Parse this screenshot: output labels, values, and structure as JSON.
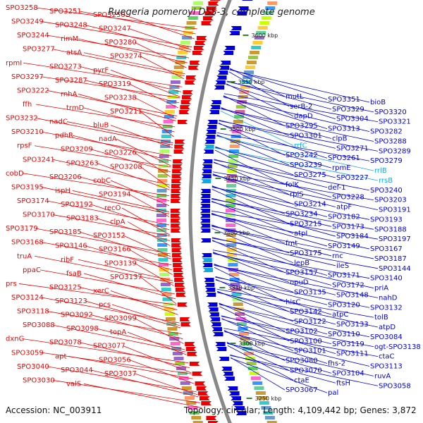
{
  "title": "Ruegeria pomeroyi DSS-3, complete genome",
  "accession": "Accession: NC_003911",
  "topology": "Topology: circular; Length: 4,109,442 bp; Genes: 3,872",
  "colors": {
    "forward": "#ee0000",
    "reverse": "#0000dd",
    "rna": "#11aadd",
    "backbone": "#888888",
    "tick": "#2a8a2a"
  },
  "ticks": [
    "3600 kbp",
    "3550 kbp",
    "3500 kbp",
    "3450 kbp",
    "3400 kbp",
    "3350 kbp",
    "3300 kbp",
    "3250 kbp"
  ],
  "left_labels": [
    "SPO3258",
    "SPO3251",
    "SPO3250",
    "SPO3249",
    "SPO3248",
    "SPO3247",
    "SPO3244",
    "rimM",
    "SPO3280",
    "SPO3277",
    "atsA",
    "SPO3274",
    "rpmI",
    "SPO3273",
    "pyrF",
    "SPO3297",
    "SPO3287",
    "SPO3319",
    "SPO3222",
    "rnhA",
    "SPO3238",
    "ffh",
    "trmD",
    "SPO3211",
    "SPO3232",
    "nadC",
    "bluB",
    "SPO3210",
    "pdhR",
    "nadA",
    "rpsF",
    "SPO3209",
    "SPO3226",
    "SPO3241",
    "SPO3263",
    "SPO3208",
    "cobD",
    "SPO3206",
    "cobC",
    "SPO3195",
    "ispH",
    "SPO3194",
    "SPO3174",
    "SPO3192",
    "recO",
    "SPO3170",
    "SPO3183",
    "clpA",
    "SPO3179",
    "SPO3185",
    "SPO3152",
    "SPO3168",
    "SPO3146",
    "SPO3166",
    "truA",
    "ribF",
    "SPO3139",
    "ppaC",
    "fsaB",
    "SPO3137",
    "prs",
    "SPO3125",
    "xerC",
    "SPO3124",
    "SPO3123",
    "pcs",
    "SPO3118",
    "SPO3092",
    "SPO3099",
    "SPO3088",
    "SPO3098",
    "topA",
    "dxnG",
    "SPO3078",
    "SPO3077",
    "SPO3059",
    "apt",
    "SPO3056",
    "SPO3040",
    "SPO3044",
    "SPO3037",
    "SPO3030",
    "valS"
  ],
  "right_labels": [
    "mutL",
    "SPO3351",
    "bioB",
    "serB-2",
    "SPO3329",
    "SPO3320",
    "dapD",
    "SPO3304",
    "SPO3321",
    "SPO3295",
    "SPO3313",
    "SPO3282",
    "SPO3301",
    "clpB",
    "SPO3288",
    "rrfC",
    "SPO3271",
    "SPO3289",
    "SPO3242",
    "SPO3261",
    "SPO3279",
    "SPO3239",
    "rpmE",
    "rrlB",
    "SPO3275",
    "SPO3227",
    "rrsB",
    "folK",
    "def-1",
    "SPO3240",
    "rplS",
    "SPO3228",
    "SPO3203",
    "SPO3214",
    "atpF",
    "SPO3191",
    "SPO3234",
    "SPO3182",
    "SPO3193",
    "SPO3215",
    "SPO3173",
    "SPO3188",
    "atpI",
    "SPO3184",
    "SPO3197",
    "fmt",
    "SPO3149",
    "SPO3167",
    "SPO3175",
    "rnc",
    "SPO3187",
    "lepB",
    "ileS",
    "SPO3144",
    "SPO3157",
    "SPO3171",
    "SPO3140",
    "opuD",
    "SPO3172",
    "priA",
    "SPO3135",
    "SPO3148",
    "nahD",
    "hisC",
    "SPO3120",
    "SPO3132",
    "SPO3142",
    "atpC",
    "tolB",
    "SPO3122",
    "SPO3133",
    "atpD",
    "SPO3102",
    "SPO3110",
    "SPO3084",
    "SPO3100",
    "SPO3119",
    "ogt-SPO3138",
    "SPO3101",
    "SPO3111",
    "ctaC",
    "SPO3080",
    "fhs-2",
    "SPO3113",
    "SPO3070",
    "SPO3104",
    "ruvA",
    "ctaE",
    "ftsH",
    "SPO3058",
    "SPO3067",
    "pal"
  ]
}
